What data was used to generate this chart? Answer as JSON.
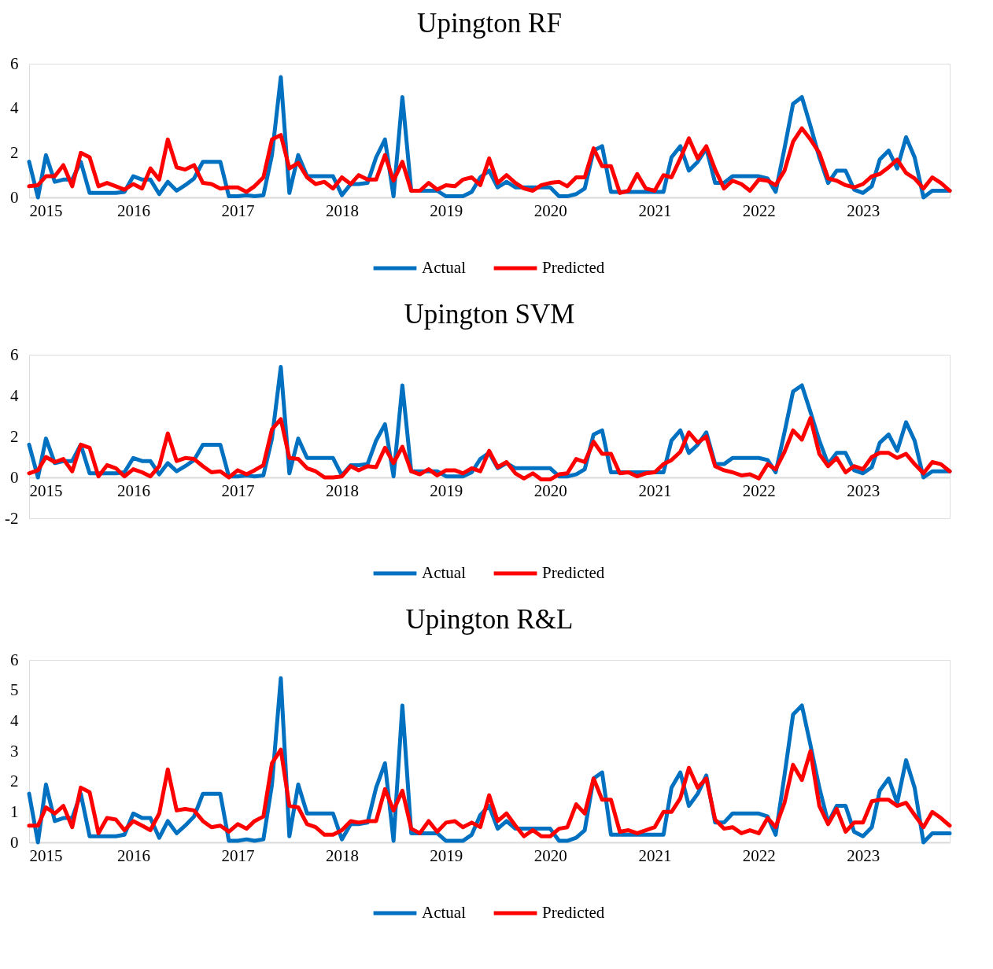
{
  "chart_data": [
    {
      "type": "line",
      "title": "Upington RF",
      "legend": "bottom",
      "x": [
        "2015-01",
        "2015-02",
        "2015-03",
        "2015-04",
        "2015-05",
        "2015-06",
        "2015-07",
        "2015-08",
        "2015-09",
        "2015-10",
        "2015-11",
        "2015-12",
        "2016-01",
        "2016-02",
        "2016-03",
        "2016-04",
        "2016-05",
        "2016-06",
        "2016-07",
        "2016-08",
        "2016-09",
        "2016-10",
        "2016-11",
        "2016-12",
        "2017-01",
        "2017-02",
        "2017-03",
        "2017-04",
        "2017-05",
        "2017-06",
        "2017-07",
        "2017-08",
        "2017-09",
        "2017-10",
        "2017-11",
        "2017-12",
        "2018-01",
        "2018-02",
        "2018-03",
        "2018-04",
        "2018-05",
        "2018-06",
        "2018-07",
        "2018-08",
        "2018-09",
        "2018-10",
        "2018-11",
        "2018-12",
        "2019-01",
        "2019-02",
        "2019-03",
        "2019-04",
        "2019-05",
        "2019-06",
        "2019-07",
        "2019-08",
        "2019-09",
        "2019-10",
        "2019-11",
        "2019-12",
        "2020-01",
        "2020-02",
        "2020-03",
        "2020-04",
        "2020-05",
        "2020-06",
        "2020-07",
        "2020-08",
        "2020-09",
        "2020-10",
        "2020-11",
        "2020-12",
        "2021-01",
        "2021-02",
        "2021-03",
        "2021-04",
        "2021-05",
        "2021-06",
        "2021-07",
        "2021-08",
        "2021-09",
        "2021-10",
        "2021-11",
        "2021-12",
        "2022-01",
        "2022-02",
        "2022-03",
        "2022-04",
        "2022-05",
        "2022-06",
        "2022-07",
        "2022-08",
        "2022-09",
        "2022-10",
        "2022-11",
        "2022-12",
        "2023-01",
        "2023-02",
        "2023-03",
        "2023-04",
        "2023-05",
        "2023-06",
        "2023-07",
        "2023-08",
        "2023-09",
        "2023-10",
        "2023-11"
      ],
      "xlim": [
        "2015-01",
        "2023-11"
      ],
      "xticks": [
        "2015",
        "2016",
        "2017",
        "2018",
        "2019",
        "2020",
        "2021",
        "2022",
        "2023"
      ],
      "ylim": [
        0,
        6
      ],
      "yticks": [
        0,
        2,
        4,
        6
      ],
      "series": [
        {
          "name": "Actual",
          "color": "#0070c0",
          "values": [
            1.6,
            0,
            1.9,
            0.7,
            0.8,
            0.8,
            1.6,
            0.2,
            0.2,
            0.2,
            0.2,
            0.25,
            0.95,
            0.8,
            0.8,
            0.15,
            0.7,
            0.3,
            0.55,
            0.85,
            1.6,
            1.6,
            1.6,
            0.05,
            0.05,
            0.1,
            0.05,
            0.1,
            1.9,
            5.4,
            0.2,
            1.9,
            0.95,
            0.95,
            0.95,
            0.95,
            0.1,
            0.6,
            0.6,
            0.65,
            1.8,
            2.6,
            0.05,
            4.5,
            0.3,
            0.3,
            0.3,
            0.3,
            0.05,
            0.05,
            0.05,
            0.25,
            0.9,
            1.2,
            0.45,
            0.7,
            0.45,
            0.45,
            0.45,
            0.45,
            0.45,
            0.05,
            0.05,
            0.15,
            0.4,
            2.1,
            2.3,
            0.25,
            0.25,
            0.25,
            0.25,
            0.25,
            0.25,
            0.25,
            1.8,
            2.3,
            1.2,
            1.6,
            2.2,
            0.65,
            0.65,
            0.95,
            0.95,
            0.95,
            0.95,
            0.85,
            0.25,
            2.2,
            4.2,
            4.5,
            3.2,
            1.8,
            0.65,
            1.2,
            1.2,
            0.35,
            0.2,
            0.5,
            1.7,
            2.1,
            1.3,
            2.7,
            1.8,
            0,
            0.3,
            0.3,
            0.3
          ]
        },
        {
          "name": "Predicted",
          "color": "#ff0000",
          "values": [
            0.5,
            0.55,
            0.95,
            0.95,
            1.45,
            0.5,
            2.0,
            1.8,
            0.5,
            0.65,
            0.5,
            0.35,
            0.6,
            0.4,
            1.3,
            0.8,
            2.6,
            1.35,
            1.25,
            1.45,
            0.65,
            0.6,
            0.4,
            0.45,
            0.45,
            0.25,
            0.5,
            0.9,
            2.6,
            2.8,
            1.3,
            1.55,
            0.9,
            0.6,
            0.7,
            0.4,
            0.9,
            0.6,
            1.0,
            0.8,
            0.8,
            1.9,
            0.75,
            1.6,
            0.3,
            0.3,
            0.65,
            0.35,
            0.55,
            0.5,
            0.8,
            0.9,
            0.55,
            1.75,
            0.65,
            1.0,
            0.65,
            0.4,
            0.3,
            0.55,
            0.65,
            0.7,
            0.5,
            0.9,
            0.9,
            2.2,
            1.4,
            1.4,
            0.2,
            0.3,
            1.05,
            0.4,
            0.3,
            1.0,
            0.9,
            1.75,
            2.65,
            1.75,
            2.3,
            1.25,
            0.4,
            0.75,
            0.6,
            0.3,
            0.8,
            0.75,
            0.55,
            1.2,
            2.5,
            3.1,
            2.6,
            2.0,
            0.85,
            0.75,
            0.55,
            0.45,
            0.6,
            0.95,
            1.05,
            1.35,
            1.7,
            1.1,
            0.85,
            0.4,
            0.9,
            0.65,
            0.3
          ]
        }
      ]
    },
    {
      "type": "line",
      "title": "Upington SVM",
      "legend": "bottom",
      "x": [
        "2015-01",
        "2015-02",
        "2015-03",
        "2015-04",
        "2015-05",
        "2015-06",
        "2015-07",
        "2015-08",
        "2015-09",
        "2015-10",
        "2015-11",
        "2015-12",
        "2016-01",
        "2016-02",
        "2016-03",
        "2016-04",
        "2016-05",
        "2016-06",
        "2016-07",
        "2016-08",
        "2016-09",
        "2016-10",
        "2016-11",
        "2016-12",
        "2017-01",
        "2017-02",
        "2017-03",
        "2017-04",
        "2017-05",
        "2017-06",
        "2017-07",
        "2017-08",
        "2017-09",
        "2017-10",
        "2017-11",
        "2017-12",
        "2018-01",
        "2018-02",
        "2018-03",
        "2018-04",
        "2018-05",
        "2018-06",
        "2018-07",
        "2018-08",
        "2018-09",
        "2018-10",
        "2018-11",
        "2018-12",
        "2019-01",
        "2019-02",
        "2019-03",
        "2019-04",
        "2019-05",
        "2019-06",
        "2019-07",
        "2019-08",
        "2019-09",
        "2019-10",
        "2019-11",
        "2019-12",
        "2020-01",
        "2020-02",
        "2020-03",
        "2020-04",
        "2020-05",
        "2020-06",
        "2020-07",
        "2020-08",
        "2020-09",
        "2020-10",
        "2020-11",
        "2020-12",
        "2021-01",
        "2021-02",
        "2021-03",
        "2021-04",
        "2021-05",
        "2021-06",
        "2021-07",
        "2021-08",
        "2021-09",
        "2021-10",
        "2021-11",
        "2021-12",
        "2022-01",
        "2022-02",
        "2022-03",
        "2022-04",
        "2022-05",
        "2022-06",
        "2022-07",
        "2022-08",
        "2022-09",
        "2022-10",
        "2022-11",
        "2022-12",
        "2023-01",
        "2023-02",
        "2023-03",
        "2023-04",
        "2023-05",
        "2023-06",
        "2023-07",
        "2023-08",
        "2023-09",
        "2023-10",
        "2023-11"
      ],
      "xlim": [
        "2015-01",
        "2023-11"
      ],
      "xticks": [
        "2015",
        "2016",
        "2017",
        "2018",
        "2019",
        "2020",
        "2021",
        "2022",
        "2023"
      ],
      "ylim": [
        -2,
        6
      ],
      "yticks": [
        -2,
        0,
        2,
        4,
        6
      ],
      "series": [
        {
          "name": "Actual",
          "color": "#0070c0",
          "values": [
            1.6,
            0,
            1.9,
            0.7,
            0.8,
            0.8,
            1.6,
            0.2,
            0.2,
            0.2,
            0.2,
            0.25,
            0.95,
            0.8,
            0.8,
            0.15,
            0.7,
            0.3,
            0.55,
            0.85,
            1.6,
            1.6,
            1.6,
            0.05,
            0.05,
            0.1,
            0.05,
            0.1,
            1.9,
            5.4,
            0.2,
            1.9,
            0.95,
            0.95,
            0.95,
            0.95,
            0.1,
            0.6,
            0.6,
            0.65,
            1.8,
            2.6,
            0.05,
            4.5,
            0.3,
            0.3,
            0.3,
            0.3,
            0.05,
            0.05,
            0.05,
            0.25,
            0.9,
            1.2,
            0.45,
            0.7,
            0.45,
            0.45,
            0.45,
            0.45,
            0.45,
            0.05,
            0.05,
            0.15,
            0.4,
            2.1,
            2.3,
            0.25,
            0.25,
            0.25,
            0.25,
            0.25,
            0.25,
            0.25,
            1.8,
            2.3,
            1.2,
            1.6,
            2.2,
            0.65,
            0.65,
            0.95,
            0.95,
            0.95,
            0.95,
            0.85,
            0.25,
            2.2,
            4.2,
            4.5,
            3.2,
            1.8,
            0.65,
            1.2,
            1.2,
            0.35,
            0.2,
            0.5,
            1.7,
            2.1,
            1.3,
            2.7,
            1.8,
            0,
            0.3,
            0.3,
            0.3
          ]
        },
        {
          "name": "Predicted",
          "color": "#ff0000",
          "values": [
            0.2,
            0.35,
            1.0,
            0.75,
            0.9,
            0.3,
            1.6,
            1.45,
            0.05,
            0.6,
            0.45,
            0.05,
            0.4,
            0.25,
            0.05,
            0.55,
            2.15,
            0.8,
            0.95,
            0.9,
            0.55,
            0.25,
            0.3,
            0,
            0.35,
            0.15,
            0.35,
            0.6,
            2.35,
            2.85,
            0.95,
            0.9,
            0.45,
            0.3,
            0,
            0,
            0.05,
            0.55,
            0.35,
            0.55,
            0.5,
            1.45,
            0.7,
            1.5,
            0.3,
            0.15,
            0.4,
            0.1,
            0.35,
            0.35,
            0.2,
            0.45,
            0.3,
            1.3,
            0.5,
            0.75,
            0.2,
            -0.05,
            0.2,
            -0.1,
            -0.1,
            0.15,
            0.2,
            0.9,
            0.75,
            1.75,
            1.15,
            1.15,
            0.2,
            0.25,
            0.05,
            0.2,
            0.25,
            0.65,
            0.85,
            1.25,
            2.2,
            1.7,
            2.0,
            0.55,
            0.35,
            0.25,
            0.1,
            0.15,
            -0.05,
            0.65,
            0.4,
            1.25,
            2.3,
            1.85,
            2.9,
            1.15,
            0.55,
            0.95,
            0.25,
            0.55,
            0.4,
            1.0,
            1.2,
            1.2,
            0.95,
            1.15,
            0.65,
            0.2,
            0.75,
            0.65,
            0.3
          ]
        }
      ]
    },
    {
      "type": "line",
      "title": "Upington R&L",
      "legend": "bottom",
      "x": [
        "2015-01",
        "2015-02",
        "2015-03",
        "2015-04",
        "2015-05",
        "2015-06",
        "2015-07",
        "2015-08",
        "2015-09",
        "2015-10",
        "2015-11",
        "2015-12",
        "2016-01",
        "2016-02",
        "2016-03",
        "2016-04",
        "2016-05",
        "2016-06",
        "2016-07",
        "2016-08",
        "2016-09",
        "2016-10",
        "2016-11",
        "2016-12",
        "2017-01",
        "2017-02",
        "2017-03",
        "2017-04",
        "2017-05",
        "2017-06",
        "2017-07",
        "2017-08",
        "2017-09",
        "2017-10",
        "2017-11",
        "2017-12",
        "2018-01",
        "2018-02",
        "2018-03",
        "2018-04",
        "2018-05",
        "2018-06",
        "2018-07",
        "2018-08",
        "2018-09",
        "2018-10",
        "2018-11",
        "2018-12",
        "2019-01",
        "2019-02",
        "2019-03",
        "2019-04",
        "2019-05",
        "2019-06",
        "2019-07",
        "2019-08",
        "2019-09",
        "2019-10",
        "2019-11",
        "2019-12",
        "2020-01",
        "2020-02",
        "2020-03",
        "2020-04",
        "2020-05",
        "2020-06",
        "2020-07",
        "2020-08",
        "2020-09",
        "2020-10",
        "2020-11",
        "2020-12",
        "2021-01",
        "2021-02",
        "2021-03",
        "2021-04",
        "2021-05",
        "2021-06",
        "2021-07",
        "2021-08",
        "2021-09",
        "2021-10",
        "2021-11",
        "2021-12",
        "2022-01",
        "2022-02",
        "2022-03",
        "2022-04",
        "2022-05",
        "2022-06",
        "2022-07",
        "2022-08",
        "2022-09",
        "2022-10",
        "2022-11",
        "2022-12",
        "2023-01",
        "2023-02",
        "2023-03",
        "2023-04",
        "2023-05",
        "2023-06",
        "2023-07",
        "2023-08",
        "2023-09",
        "2023-10",
        "2023-11"
      ],
      "xlim": [
        "2015-01",
        "2023-11"
      ],
      "xticks": [
        "2015",
        "2016",
        "2017",
        "2018",
        "2019",
        "2020",
        "2021",
        "2022",
        "2023"
      ],
      "ylim": [
        0,
        6
      ],
      "yticks": [
        0,
        1,
        2,
        3,
        4,
        5,
        6
      ],
      "series": [
        {
          "name": "Actual",
          "color": "#0070c0",
          "values": [
            1.6,
            0,
            1.9,
            0.7,
            0.8,
            0.8,
            1.6,
            0.2,
            0.2,
            0.2,
            0.2,
            0.25,
            0.95,
            0.8,
            0.8,
            0.15,
            0.7,
            0.3,
            0.55,
            0.85,
            1.6,
            1.6,
            1.6,
            0.05,
            0.05,
            0.1,
            0.05,
            0.1,
            1.9,
            5.4,
            0.2,
            1.9,
            0.95,
            0.95,
            0.95,
            0.95,
            0.1,
            0.6,
            0.6,
            0.65,
            1.8,
            2.6,
            0.05,
            4.5,
            0.3,
            0.3,
            0.3,
            0.3,
            0.05,
            0.05,
            0.05,
            0.25,
            0.9,
            1.2,
            0.45,
            0.7,
            0.45,
            0.45,
            0.45,
            0.45,
            0.45,
            0.05,
            0.05,
            0.15,
            0.4,
            2.1,
            2.3,
            0.25,
            0.25,
            0.25,
            0.25,
            0.25,
            0.25,
            0.25,
            1.8,
            2.3,
            1.2,
            1.6,
            2.2,
            0.65,
            0.65,
            0.95,
            0.95,
            0.95,
            0.95,
            0.85,
            0.25,
            2.2,
            4.2,
            4.5,
            3.2,
            1.8,
            0.65,
            1.2,
            1.2,
            0.35,
            0.2,
            0.5,
            1.7,
            2.1,
            1.3,
            2.7,
            1.8,
            0,
            0.3,
            0.3,
            0.3
          ]
        },
        {
          "name": "Predicted",
          "color": "#ff0000",
          "values": [
            0.55,
            0.55,
            1.15,
            0.95,
            1.2,
            0.5,
            1.8,
            1.65,
            0.3,
            0.8,
            0.75,
            0.4,
            0.7,
            0.55,
            0.4,
            0.95,
            2.4,
            1.05,
            1.1,
            1.05,
            0.7,
            0.5,
            0.55,
            0.35,
            0.6,
            0.45,
            0.7,
            0.85,
            2.6,
            3.05,
            1.2,
            1.15,
            0.6,
            0.5,
            0.25,
            0.25,
            0.4,
            0.7,
            0.65,
            0.7,
            0.7,
            1.75,
            1.05,
            1.7,
            0.45,
            0.3,
            0.7,
            0.35,
            0.65,
            0.7,
            0.5,
            0.65,
            0.5,
            1.55,
            0.7,
            0.95,
            0.55,
            0.2,
            0.4,
            0.2,
            0.2,
            0.45,
            0.5,
            1.25,
            0.95,
            2.1,
            1.4,
            1.4,
            0.35,
            0.4,
            0.3,
            0.4,
            0.5,
            1.0,
            1.0,
            1.45,
            2.45,
            1.8,
            2.1,
            0.75,
            0.45,
            0.5,
            0.3,
            0.4,
            0.3,
            0.8,
            0.5,
            1.3,
            2.55,
            2.05,
            3.0,
            1.2,
            0.6,
            1.1,
            0.35,
            0.65,
            0.65,
            1.35,
            1.4,
            1.4,
            1.2,
            1.3,
            0.9,
            0.5,
            1.0,
            0.8,
            0.55
          ]
        }
      ]
    }
  ]
}
